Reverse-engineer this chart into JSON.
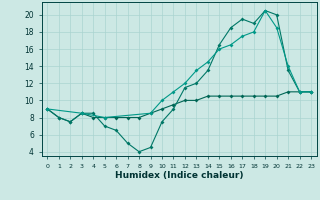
{
  "xlabel": "Humidex (Indice chaleur)",
  "bg_color": "#cce8e4",
  "grid_color": "#aad4d0",
  "line_color1": "#006655",
  "line_color2": "#007766",
  "line_color3": "#009988",
  "xlim": [
    -0.5,
    23.5
  ],
  "ylim": [
    3.5,
    21.5
  ],
  "xticks": [
    0,
    1,
    2,
    3,
    4,
    5,
    6,
    7,
    8,
    9,
    10,
    11,
    12,
    13,
    14,
    15,
    16,
    17,
    18,
    19,
    20,
    21,
    22,
    23
  ],
  "yticks": [
    4,
    6,
    8,
    10,
    12,
    14,
    16,
    18,
    20
  ],
  "series1_x": [
    0,
    1,
    2,
    3,
    4,
    5,
    6,
    7,
    8,
    9,
    10,
    11,
    12,
    13,
    14,
    15,
    16,
    17,
    18,
    19,
    20,
    21,
    22,
    23
  ],
  "series1_y": [
    9.0,
    8.0,
    7.5,
    8.5,
    8.5,
    7.0,
    6.5,
    5.0,
    4.0,
    4.5,
    7.5,
    9.0,
    11.5,
    12.0,
    13.5,
    16.5,
    18.5,
    19.5,
    19.0,
    20.5,
    20.0,
    13.5,
    11.0,
    11.0
  ],
  "series2_x": [
    0,
    1,
    2,
    3,
    4,
    5,
    6,
    7,
    8,
    9,
    10,
    11,
    12,
    13,
    14,
    15,
    16,
    17,
    18,
    19,
    20,
    21,
    22,
    23
  ],
  "series2_y": [
    9.0,
    8.0,
    7.5,
    8.5,
    8.0,
    8.0,
    8.0,
    8.0,
    8.0,
    8.5,
    9.0,
    9.5,
    10.0,
    10.0,
    10.5,
    10.5,
    10.5,
    10.5,
    10.5,
    10.5,
    10.5,
    11.0,
    11.0,
    11.0
  ],
  "series3_x": [
    0,
    3,
    5,
    9,
    10,
    11,
    12,
    13,
    14,
    15,
    16,
    17,
    18,
    19,
    20,
    21,
    22,
    23
  ],
  "series3_y": [
    9.0,
    8.5,
    8.0,
    8.5,
    10.0,
    11.0,
    12.0,
    13.5,
    14.5,
    16.0,
    16.5,
    17.5,
    18.0,
    20.5,
    18.5,
    14.0,
    11.0,
    11.0
  ]
}
